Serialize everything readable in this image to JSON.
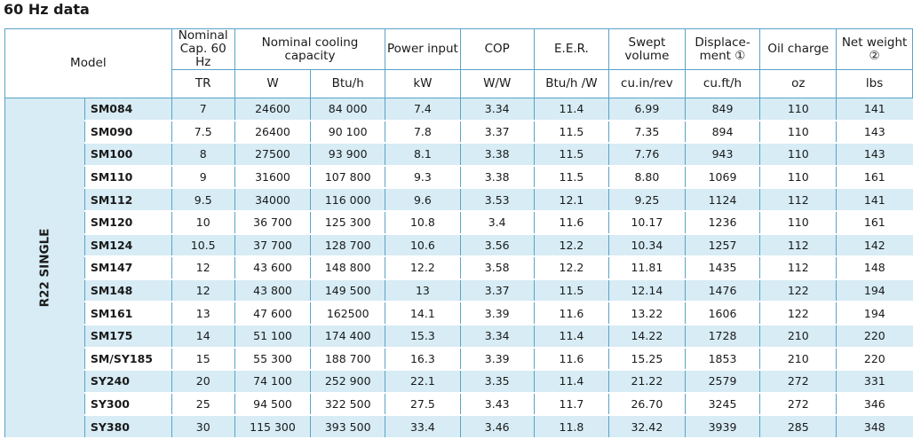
{
  "title": "60 Hz data",
  "header": {
    "model": "Model",
    "nominal_cap": "Nominal Cap. 60 Hz",
    "cooling_capacity": "Nominal cooling capacity",
    "power_input": "Power input",
    "cop": "COP",
    "eer": "E.E.R.",
    "swept_volume": "Swept volume",
    "displacement": "Displace- ment ①",
    "oil_charge": "Oil charge",
    "net_weight": "Net weight ②"
  },
  "units": [
    "TR",
    "W",
    "Btu/h",
    "kW",
    "W/W",
    "Btu/h /W",
    "cu.in/rev",
    "cu.ft/h",
    "oz",
    "lbs"
  ],
  "group_label": "R22 SINGLE",
  "rows": [
    [
      "SM084",
      "7",
      "24600",
      "84 000",
      "7.4",
      "3.34",
      "11.4",
      "6.99",
      "849",
      "110",
      "141"
    ],
    [
      "SM090",
      "7.5",
      "26400",
      "90 100",
      "7.8",
      "3.37",
      "11.5",
      "7.35",
      "894",
      "110",
      "143"
    ],
    [
      "SM100",
      "8",
      "27500",
      "93 900",
      "8.1",
      "3.38",
      "11.5",
      "7.76",
      "943",
      "110",
      "143"
    ],
    [
      "SM110",
      "9",
      "31600",
      "107 800",
      "9.3",
      "3.38",
      "11.5",
      "8.80",
      "1069",
      "110",
      "161"
    ],
    [
      "SM112",
      "9.5",
      "34000",
      "116 000",
      "9.6",
      "3.53",
      "12.1",
      "9.25",
      "1124",
      "112",
      "141"
    ],
    [
      "SM120",
      "10",
      "36 700",
      "125 300",
      "10.8",
      "3.4",
      "11.6",
      "10.17",
      "1236",
      "110",
      "161"
    ],
    [
      "SM124",
      "10.5",
      "37 700",
      "128 700",
      "10.6",
      "3.56",
      "12.2",
      "10.34",
      "1257",
      "112",
      "142"
    ],
    [
      "SM147",
      "12",
      "43 600",
      "148 800",
      "12.2",
      "3.58",
      "12.2",
      "11.81",
      "1435",
      "112",
      "148"
    ],
    [
      "SM148",
      "12",
      "43 800",
      "149 500",
      "13",
      "3.37",
      "11.5",
      "12.14",
      "1476",
      "122",
      "194"
    ],
    [
      "SM161",
      "13",
      "47 600",
      "162500",
      "14.1",
      "3.39",
      "11.6",
      "13.22",
      "1606",
      "122",
      "194"
    ],
    [
      "SM175",
      "14",
      "51 100",
      "174 400",
      "15.3",
      "3.34",
      "11.4",
      "14.22",
      "1728",
      "210",
      "220"
    ],
    [
      "SM/SY185",
      "15",
      "55 300",
      "188 700",
      "16.3",
      "3.39",
      "11.6",
      "15.25",
      "1853",
      "210",
      "220"
    ],
    [
      "SY240",
      "20",
      "74 100",
      "252 900",
      "22.1",
      "3.35",
      "11.4",
      "21.22",
      "2579",
      "272",
      "331"
    ],
    [
      "SY300",
      "25",
      "94 500",
      "322 500",
      "27.5",
      "3.43",
      "11.7",
      "26.70",
      "3245",
      "272",
      "346"
    ],
    [
      "SY380",
      "30",
      "115 300",
      "393 500",
      "33.4",
      "3.46",
      "11.8",
      "32.42",
      "3939",
      "285",
      "348"
    ]
  ]
}
